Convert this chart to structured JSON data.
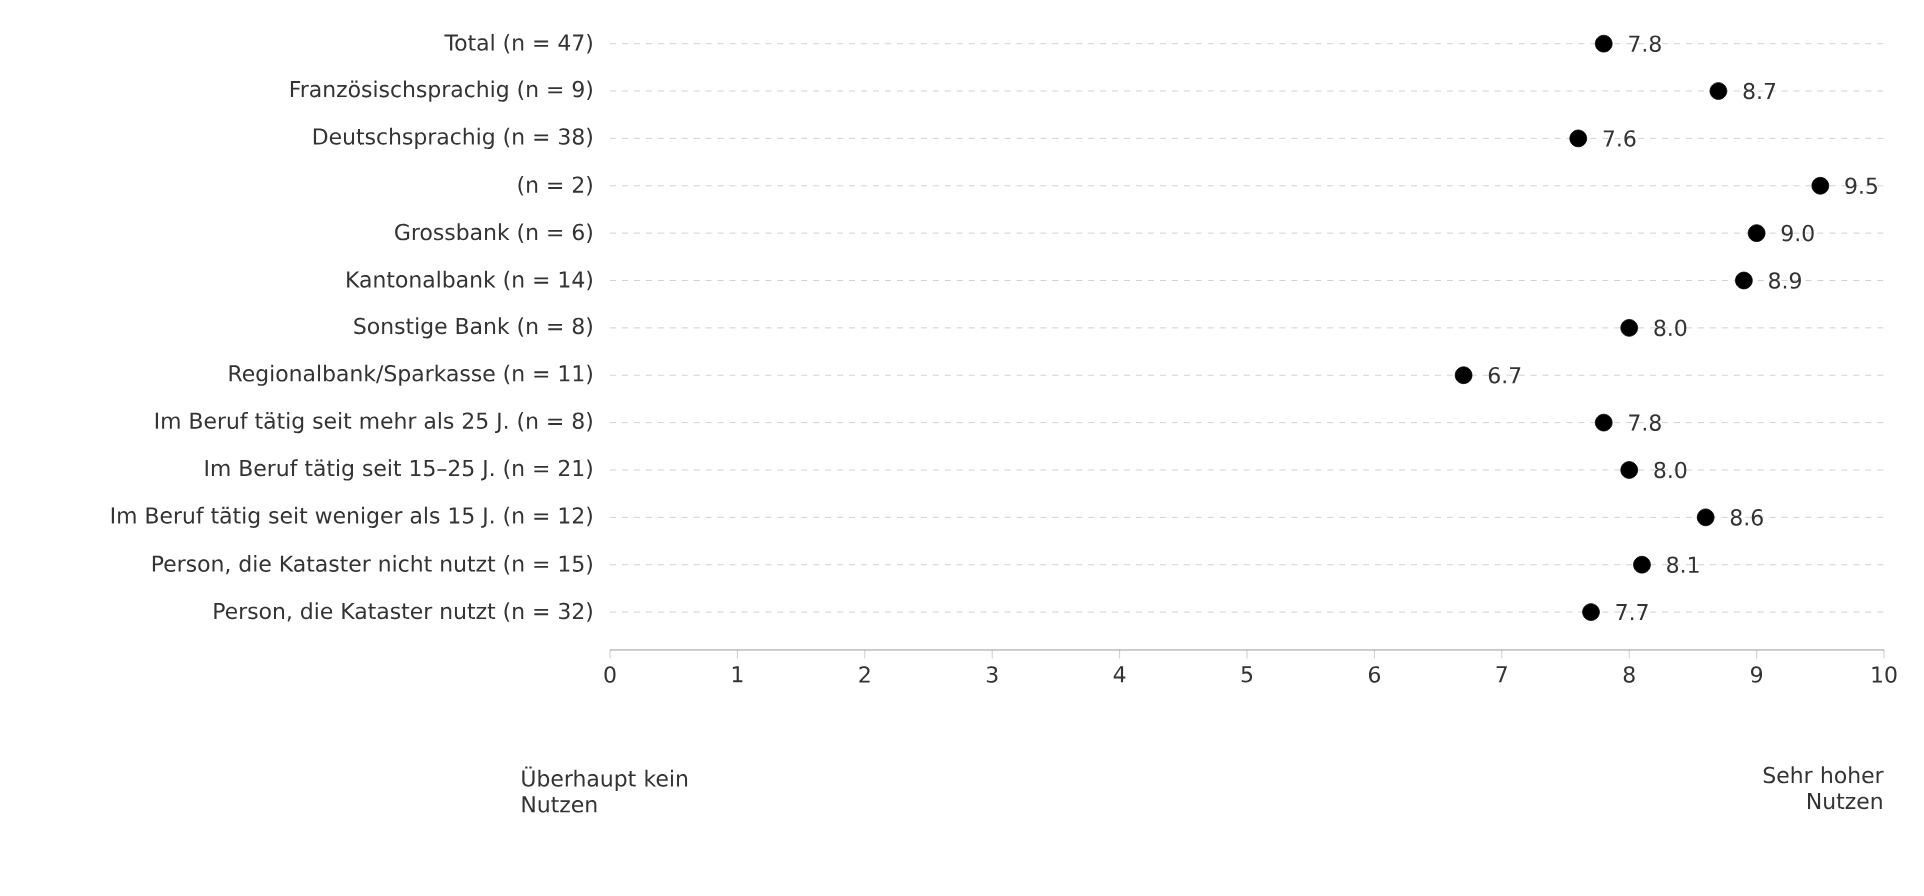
{
  "chart_data": {
    "type": "scatter",
    "orientation": "horizontal",
    "categories": [
      "Total (n = 47)",
      "Französischsprachig (n = 9)",
      "Deutschsprachig (n = 38)",
      "(n = 2)",
      "Grossbank (n = 6)",
      "Kantonalbank (n = 14)",
      "Sonstige Bank (n = 8)",
      "Regionalbank/Sparkasse (n = 11)",
      "Im Beruf tätig seit mehr als 25 J. (n = 8)",
      "Im Beruf tätig seit 15–25 J. (n = 21)",
      "Im Beruf tätig seit weniger als 15 J. (n = 12)",
      "Person, die Kataster nicht nutzt (n = 15)",
      "Person, die Kataster nutzt (n = 32)"
    ],
    "values": [
      7.8,
      8.7,
      7.6,
      9.5,
      9.0,
      8.9,
      8.0,
      6.7,
      7.8,
      8.0,
      8.6,
      8.1,
      7.7
    ],
    "value_labels": [
      "7.8",
      "8.7",
      "7.6",
      "9.5",
      "9.0",
      "8.9",
      "8.0",
      "6.7",
      "7.8",
      "8.0",
      "8.6",
      "8.1",
      "7.7"
    ],
    "color": "#000000",
    "marker": "circle",
    "grid": "y",
    "xlim": [
      0,
      10
    ],
    "xticks": [
      0,
      1,
      2,
      3,
      4,
      5,
      6,
      7,
      8,
      9,
      10
    ],
    "annotations": [
      "Überhaupt kein Nutzen",
      "Sehr hoher Nutzen"
    ]
  }
}
